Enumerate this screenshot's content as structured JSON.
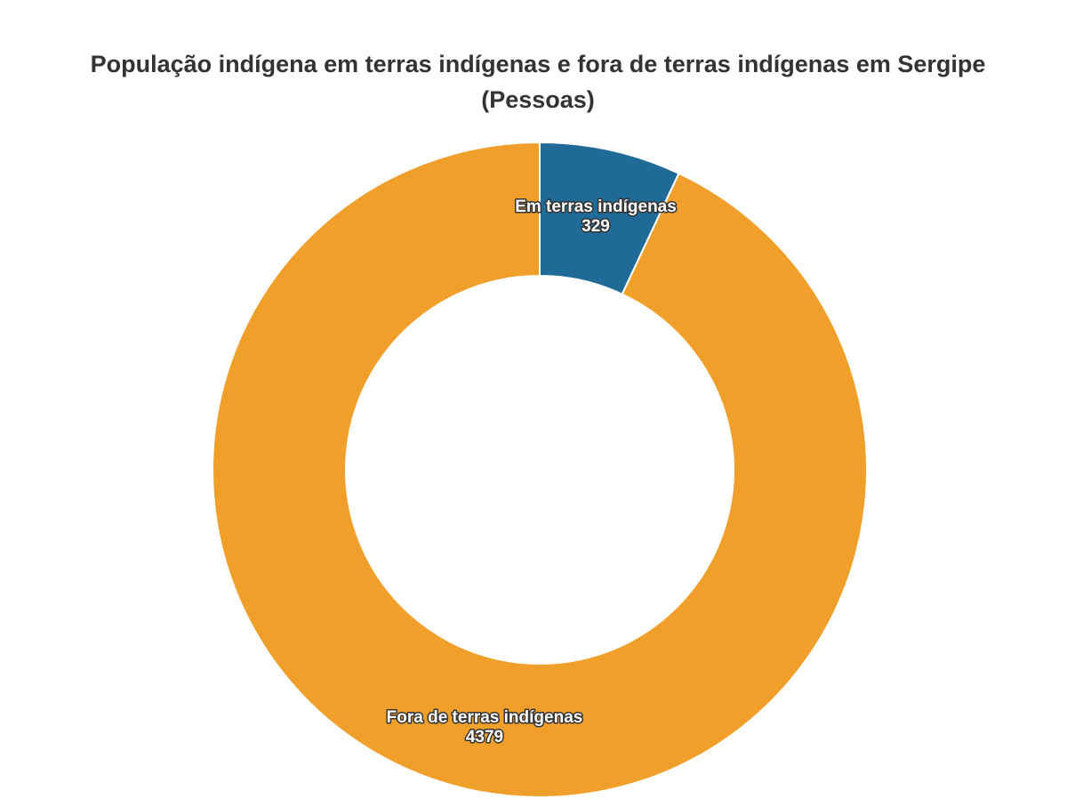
{
  "chart_data": {
    "type": "pie",
    "variant": "donut",
    "title": "População indígena em terras indígenas e fora de terras indígenas em Sergipe",
    "subtitle": "(Pessoas)",
    "categories": [
      "Em terras indígenas",
      "Fora de terras indígenas"
    ],
    "values": [
      329,
      4379
    ],
    "colors": [
      "#1f6a96",
      "#f0a02a"
    ],
    "legend": "none",
    "data_labels": "category and value"
  }
}
